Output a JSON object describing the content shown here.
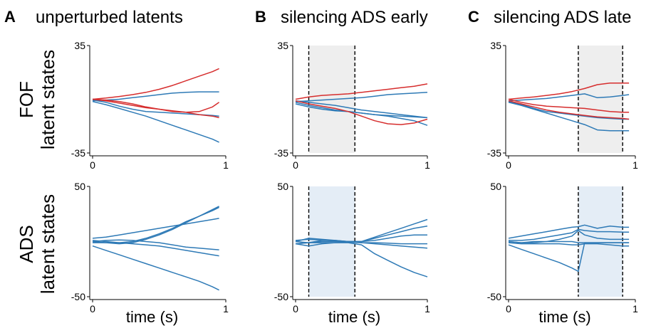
{
  "colors": {
    "red_series": "#d62d2d",
    "blue_series": "#2e7ab6",
    "fof_shade": "#eeeeee",
    "ads_shade": "#e4edf6",
    "axis": "#000000"
  },
  "panels": [
    {
      "letter": "A",
      "title": "unperturbed latents"
    },
    {
      "letter": "B",
      "title": "silencing ADS early"
    },
    {
      "letter": "C",
      "title": "silencing ADS late"
    }
  ],
  "rows": [
    {
      "region": "FOF",
      "label": "latent states"
    },
    {
      "region": "ADS",
      "label": "latent states"
    }
  ],
  "xlabel": "time (s)",
  "chart_data": [
    {
      "type": "line",
      "panel": "A",
      "row": "FOF",
      "title": "unperturbed latents",
      "xlabel": "",
      "ylabel": "FOF latent states",
      "xlim": [
        0,
        1
      ],
      "ylim": [
        -35,
        35
      ],
      "xticks": [
        "0",
        "1"
      ],
      "yticks": [
        "-35",
        "35"
      ],
      "shade": null,
      "x": [
        0,
        0.1,
        0.2,
        0.3,
        0.4,
        0.5,
        0.6,
        0.7,
        0.8,
        0.9,
        0.95
      ],
      "series": [
        {
          "color": "red",
          "values": [
            0,
            0.8,
            1.8,
            3,
            4.5,
            6.5,
            9,
            12,
            15,
            18,
            20
          ]
        },
        {
          "color": "red",
          "values": [
            0,
            -0.5,
            -1.5,
            -3,
            -5,
            -6.5,
            -8,
            -8.5,
            -8,
            -5,
            -2
          ]
        },
        {
          "color": "red",
          "values": [
            0,
            -1,
            -2.5,
            -4,
            -5.5,
            -6.5,
            -7.5,
            -8.5,
            -10,
            -11,
            -12
          ]
        },
        {
          "color": "blue",
          "values": [
            -1,
            -0.5,
            0,
            1,
            2,
            3,
            4,
            4.5,
            4.8,
            4.8,
            4.8
          ]
        },
        {
          "color": "blue",
          "values": [
            -0.5,
            -2,
            -4.5,
            -6.5,
            -8,
            -8.5,
            -9,
            -9.5,
            -10,
            -10.5,
            -11
          ]
        },
        {
          "color": "blue",
          "values": [
            -1.5,
            -3.5,
            -6,
            -8.5,
            -11,
            -14,
            -17,
            -20,
            -23,
            -26,
            -28
          ]
        }
      ]
    },
    {
      "type": "line",
      "panel": "B",
      "row": "FOF",
      "title": "silencing ADS early",
      "xlabel": "",
      "ylabel": "",
      "xlim": [
        0,
        1
      ],
      "ylim": [
        -35,
        35
      ],
      "xticks": [
        "0",
        "1"
      ],
      "yticks": [
        "-35",
        "35"
      ],
      "shade": [
        0.1,
        0.45
      ],
      "x": [
        0,
        0.1,
        0.2,
        0.3,
        0.4,
        0.5,
        0.6,
        0.7,
        0.8,
        0.9,
        1.0
      ],
      "series": [
        {
          "color": "red",
          "values": [
            0,
            1.5,
            2.5,
            3,
            3.5,
            4.5,
            5.5,
            6.5,
            7.5,
            8.5,
            10
          ]
        },
        {
          "color": "red",
          "values": [
            -1,
            -3,
            -4.5,
            -6,
            -8,
            -11,
            -14,
            -16,
            -16.5,
            -15.5,
            -13
          ]
        },
        {
          "color": "blue",
          "values": [
            -1.5,
            -1,
            -0.5,
            0,
            0.5,
            1,
            2,
            3,
            3.5,
            4,
            4.5
          ]
        },
        {
          "color": "blue",
          "values": [
            -1,
            -2,
            -3,
            -4,
            -5.5,
            -7,
            -8,
            -9,
            -10,
            -11,
            -12
          ]
        },
        {
          "color": "blue",
          "values": [
            -2,
            -4,
            -5.5,
            -7,
            -8,
            -9,
            -10,
            -10.5,
            -11,
            -11.5,
            -12
          ]
        },
        {
          "color": "blue",
          "values": [
            -3,
            -5,
            -6.5,
            -7.5,
            -8,
            -9,
            -10,
            -11,
            -12.5,
            -14,
            -17
          ]
        }
      ]
    },
    {
      "type": "line",
      "panel": "C",
      "row": "FOF",
      "title": "silencing ADS late",
      "xlabel": "",
      "ylabel": "",
      "xlim": [
        0,
        1
      ],
      "ylim": [
        -35,
        35
      ],
      "xticks": [
        "0",
        "1"
      ],
      "yticks": [
        "-35",
        "35"
      ],
      "shade": [
        0.55,
        0.9
      ],
      "x": [
        0,
        0.1,
        0.2,
        0.3,
        0.4,
        0.5,
        0.6,
        0.7,
        0.8,
        0.9,
        0.95
      ],
      "series": [
        {
          "color": "red",
          "values": [
            0,
            0.8,
            1.5,
            2.5,
            3.5,
            5,
            7,
            9.5,
            10.5,
            10.5,
            10.5
          ]
        },
        {
          "color": "red",
          "values": [
            0,
            -2,
            -3.5,
            -4.5,
            -5,
            -5.5,
            -6,
            -7,
            -8,
            -8.5,
            -8.5
          ]
        },
        {
          "color": "red",
          "values": [
            -1,
            -3,
            -5,
            -7,
            -8.5,
            -9.5,
            -10.5,
            -11.5,
            -12,
            -12.5,
            -13
          ]
        },
        {
          "color": "blue",
          "values": [
            -1,
            -0.5,
            0,
            0.5,
            1.5,
            2.5,
            3.5,
            1,
            1.5,
            2.5,
            3
          ]
        },
        {
          "color": "blue",
          "values": [
            -1.5,
            -3.5,
            -6,
            -8,
            -9,
            -10,
            -11,
            -12,
            -12.5,
            -13,
            -13
          ]
        },
        {
          "color": "blue",
          "values": [
            -2,
            -4,
            -6.5,
            -9,
            -11.5,
            -14,
            -16.5,
            -20,
            -20.5,
            -20.5,
            -20.5
          ]
        }
      ]
    },
    {
      "type": "line",
      "panel": "A",
      "row": "ADS",
      "title": "",
      "xlabel": "time (s)",
      "ylabel": "ADS latent states",
      "xlim": [
        0,
        1
      ],
      "ylim": [
        -50,
        50
      ],
      "xticks": [
        "0",
        "1"
      ],
      "yticks": [
        "-50",
        "50"
      ],
      "shade": null,
      "x": [
        0,
        0.1,
        0.2,
        0.3,
        0.4,
        0.5,
        0.6,
        0.7,
        0.8,
        0.9,
        0.95
      ],
      "series": [
        {
          "color": "blue",
          "values": [
            3,
            4,
            6,
            8,
            10,
            12,
            14,
            16,
            18,
            20,
            21
          ]
        },
        {
          "color": "blue",
          "values": [
            0,
            -1,
            -2,
            -1,
            2,
            6,
            11,
            17,
            23,
            29,
            32
          ]
        },
        {
          "color": "blue",
          "values": [
            1,
            0,
            -1,
            0,
            3,
            7,
            12,
            18,
            23,
            28,
            31
          ]
        },
        {
          "color": "blue",
          "values": [
            0,
            1,
            1.5,
            1,
            0,
            -1,
            -3,
            -5,
            -6,
            -7,
            -7.5
          ]
        },
        {
          "color": "blue",
          "values": [
            -1,
            -1,
            -1,
            -2,
            -3,
            -4,
            -6,
            -8,
            -10,
            -12,
            -13
          ]
        },
        {
          "color": "blue",
          "values": [
            -4,
            -8,
            -12,
            -16,
            -20,
            -24,
            -28,
            -32,
            -36,
            -41,
            -44
          ]
        }
      ]
    },
    {
      "type": "line",
      "panel": "B",
      "row": "ADS",
      "title": "",
      "xlabel": "time (s)",
      "ylabel": "",
      "xlim": [
        0,
        1
      ],
      "ylim": [
        -50,
        50
      ],
      "xticks": [
        "0",
        "1"
      ],
      "yticks": [
        "-50",
        "50"
      ],
      "shade": [
        0.1,
        0.45
      ],
      "x": [
        0,
        0.1,
        0.2,
        0.3,
        0.4,
        0.5,
        0.6,
        0.7,
        0.8,
        0.9,
        1.0
      ],
      "series": [
        {
          "color": "blue",
          "values": [
            0,
            3,
            2,
            1,
            0,
            0,
            4,
            8,
            12,
            16,
            20
          ]
        },
        {
          "color": "blue",
          "values": [
            -2,
            -1,
            1,
            1,
            0,
            0,
            3,
            6,
            9,
            12,
            14
          ]
        },
        {
          "color": "blue",
          "values": [
            1,
            2,
            1.5,
            0.5,
            0,
            0,
            1,
            3,
            5,
            6,
            6
          ]
        },
        {
          "color": "blue",
          "values": [
            0,
            -1,
            0,
            0,
            0,
            -1,
            -1,
            -1.5,
            -2,
            -2,
            -2
          ]
        },
        {
          "color": "blue",
          "values": [
            -2,
            -4,
            -2,
            -1,
            -0.5,
            -1,
            -2,
            -3,
            -4,
            -5,
            -6
          ]
        },
        {
          "color": "blue",
          "values": [
            -2,
            -1,
            -1,
            -1,
            -1,
            -3,
            -11,
            -17,
            -23,
            -28,
            -32
          ]
        }
      ]
    },
    {
      "type": "line",
      "panel": "C",
      "row": "ADS",
      "title": "",
      "xlabel": "time (s)",
      "ylabel": "",
      "xlim": [
        0,
        1
      ],
      "ylim": [
        -50,
        50
      ],
      "xticks": [
        "0",
        "1"
      ],
      "yticks": [
        "-50",
        "50"
      ],
      "shade": [
        0.55,
        0.9
      ],
      "x": [
        0,
        0.1,
        0.2,
        0.3,
        0.4,
        0.5,
        0.55,
        0.6,
        0.7,
        0.8,
        0.9,
        0.95
      ],
      "series": [
        {
          "color": "blue",
          "values": [
            3,
            5,
            7,
            9,
            11,
            13,
            13.5,
            15,
            12,
            14,
            13,
            13
          ]
        },
        {
          "color": "blue",
          "values": [
            1,
            1,
            2,
            4,
            6,
            8,
            11,
            10,
            9,
            9,
            8.5,
            8.5
          ]
        },
        {
          "color": "blue",
          "values": [
            0,
            -1,
            -1,
            0,
            2,
            5,
            10,
            6,
            3,
            2,
            2,
            2
          ]
        },
        {
          "color": "blue",
          "values": [
            0,
            -1,
            0,
            0,
            0,
            0,
            -1,
            -1,
            -1,
            -1,
            -1,
            -1
          ]
        },
        {
          "color": "blue",
          "values": [
            -1,
            -2,
            -2,
            -2,
            -2,
            -3,
            -3,
            -2,
            -2,
            -3,
            -4,
            -4
          ]
        },
        {
          "color": "blue",
          "values": [
            -3,
            -7,
            -11,
            -15,
            -19,
            -24,
            -27,
            -1,
            -1,
            -1,
            -1,
            -1
          ]
        }
      ]
    }
  ]
}
